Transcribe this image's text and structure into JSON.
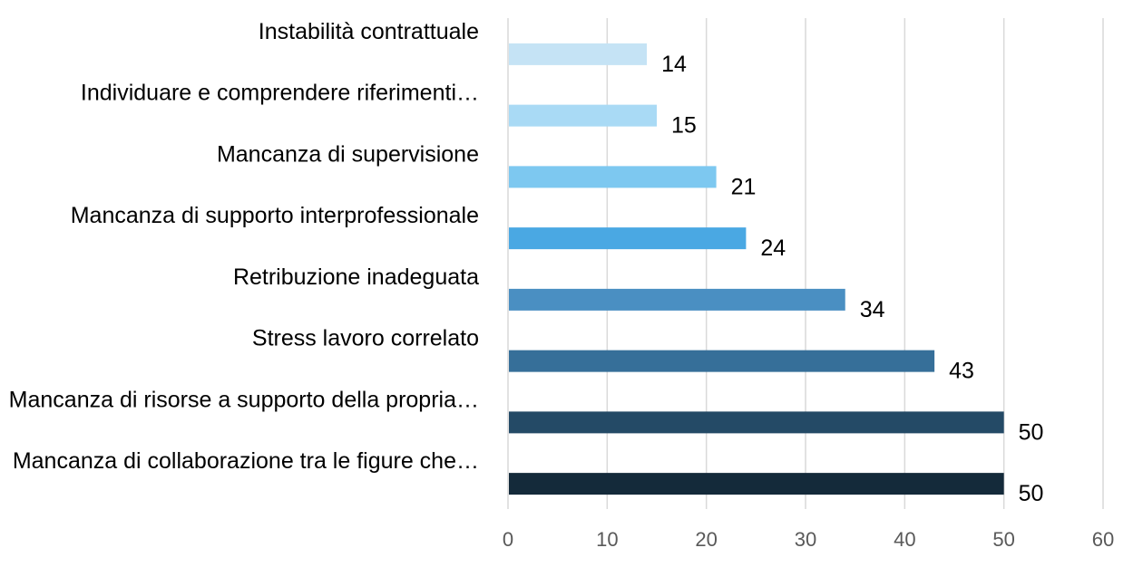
{
  "chart_data": {
    "type": "bar",
    "orientation": "horizontal",
    "title": "",
    "xlabel": "",
    "ylabel": "",
    "xlim": [
      0,
      60
    ],
    "xticks": [
      0,
      10,
      20,
      30,
      40,
      50,
      60
    ],
    "grid": "vertical",
    "legend": "none",
    "categories": [
      "Instabilità contrattuale",
      "Individuare e comprendere riferimenti…",
      "Mancanza di supervisione",
      "Mancanza di supporto interprofessionale",
      "Retribuzione inadeguata",
      "Stress lavoro correlato",
      "Mancanza di risorse a supporto della propria…",
      "Mancanza di collaborazione tra le figure che…"
    ],
    "values": [
      14,
      15,
      21,
      24,
      34,
      43,
      50,
      50
    ],
    "data_labels": [
      "14",
      "15",
      "21",
      "24",
      "34",
      "43",
      "50",
      "50"
    ],
    "colors": [
      "#c5e3f5",
      "#a9daf5",
      "#7dc8f0",
      "#4aa8e3",
      "#4a8fc2",
      "#366f99",
      "#244a66",
      "#142a3a"
    ]
  }
}
